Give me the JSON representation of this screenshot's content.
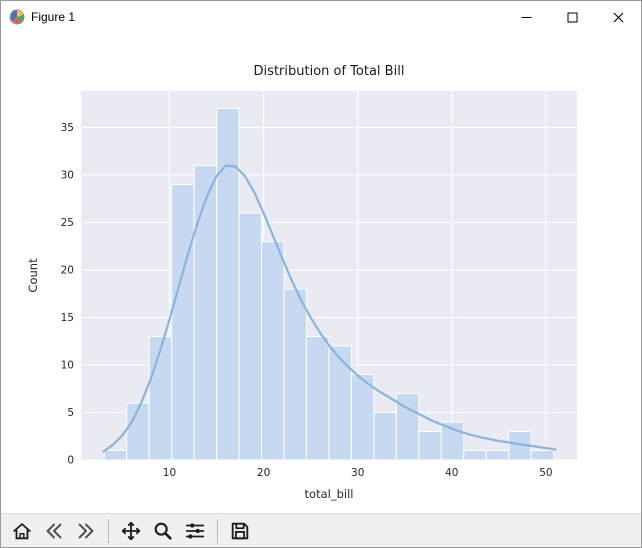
{
  "window": {
    "title": "Figure 1"
  },
  "titlebar": {
    "icons": [
      "matplotlib-logo-icon",
      "minimize-icon",
      "maximize-icon",
      "close-icon"
    ]
  },
  "chart_data": {
    "type": "bar",
    "subtype": "histogram-with-kde",
    "title": "Distribution of Total Bill",
    "xlabel": "total_bill",
    "ylabel": "Count",
    "xlim": [
      0.6,
      53.3
    ],
    "ylim": [
      0,
      38.85
    ],
    "xticks": [
      10,
      20,
      30,
      40,
      50
    ],
    "yticks": [
      0,
      5,
      10,
      15,
      20,
      25,
      30,
      35
    ],
    "grid": true,
    "bin_start": 3.07,
    "bin_width": 2.3875,
    "counts": [
      1,
      6,
      13,
      29,
      31,
      37,
      26,
      23,
      18,
      13,
      12,
      9,
      5,
      7,
      3,
      4,
      1,
      1,
      3,
      1
    ],
    "kde": {
      "x": [
        3,
        4,
        5,
        6,
        7,
        8,
        9,
        10,
        11,
        12,
        13,
        14,
        15,
        16,
        17,
        18,
        19,
        20,
        21,
        22,
        23,
        24,
        25,
        26,
        27,
        28,
        29,
        30,
        31,
        32,
        33,
        34,
        35,
        36,
        37,
        38,
        39,
        40,
        41,
        42,
        43,
        44,
        45,
        46,
        47,
        48,
        49,
        50,
        51
      ],
      "y": [
        0.9,
        1.6,
        2.6,
        4.0,
        6.0,
        8.5,
        11.5,
        14.8,
        18.3,
        21.8,
        25.0,
        27.8,
        29.9,
        31.0,
        30.9,
        29.9,
        28.2,
        26.0,
        23.6,
        21.2,
        18.9,
        16.8,
        15.0,
        13.4,
        12.0,
        10.8,
        9.8,
        8.9,
        8.1,
        7.4,
        6.8,
        6.2,
        5.6,
        5.1,
        4.6,
        4.1,
        3.7,
        3.3,
        2.95,
        2.65,
        2.4,
        2.2,
        2.0,
        1.85,
        1.7,
        1.55,
        1.4,
        1.25,
        1.1
      ]
    },
    "colors": {
      "axes_bg": "#eaeaf2",
      "grid": "#ffffff",
      "bar_fill": "#c6d9f1",
      "bar_edge": "#ffffff",
      "kde_line": "#8ab4de",
      "text": "#262626",
      "figure_bg": "#ffffff"
    }
  },
  "toolbar": {
    "items": [
      {
        "name": "home-button",
        "icon": "home-icon"
      },
      {
        "name": "back-button",
        "icon": "back-icon"
      },
      {
        "name": "forward-button",
        "icon": "forward-icon"
      },
      {
        "name": "separator"
      },
      {
        "name": "pan-button",
        "icon": "pan-icon"
      },
      {
        "name": "zoom-button",
        "icon": "zoom-icon"
      },
      {
        "name": "subplots-button",
        "icon": "subplots-icon"
      },
      {
        "name": "separator"
      },
      {
        "name": "save-button",
        "icon": "save-icon"
      }
    ]
  }
}
